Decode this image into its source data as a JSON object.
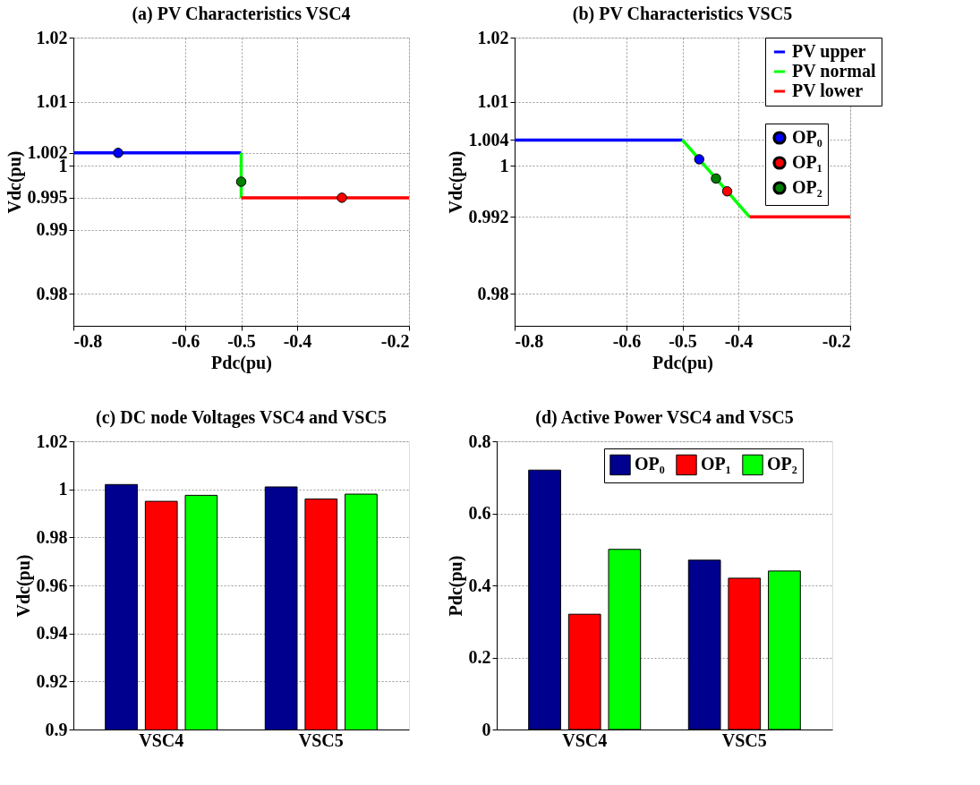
{
  "chart_data": [
    {
      "type": "line",
      "title": "(a) PV Characteristics VSC4",
      "xlabel": "Pdc(pu)",
      "ylabel": "Vdc(pu)",
      "xlim": [
        -0.8,
        -0.2
      ],
      "xticks": [
        -0.8,
        -0.6,
        -0.5,
        -0.4,
        -0.2
      ],
      "ylim": [
        0.975,
        1.02
      ],
      "yticks": [
        0.98,
        0.99,
        0.995,
        1,
        1.002,
        1.01,
        1.02
      ],
      "grid": true,
      "legend": false,
      "series": [
        {
          "type": "line",
          "color": "#0000ff",
          "x": [
            -0.8,
            -0.5
          ],
          "values": [
            1.002,
            1.002
          ]
        },
        {
          "type": "line",
          "color": "#00ff00",
          "x": [
            -0.5,
            -0.5
          ],
          "values": [
            1.002,
            0.995
          ]
        },
        {
          "type": "line",
          "color": "#ff0000",
          "x": [
            -0.5,
            -0.2
          ],
          "values": [
            0.995,
            0.995
          ]
        },
        {
          "type": "scatter",
          "color": "#0000ff",
          "x": [
            -0.72
          ],
          "values": [
            1.002
          ]
        },
        {
          "type": "scatter",
          "color": "#ff0000",
          "x": [
            -0.32
          ],
          "values": [
            0.995
          ]
        },
        {
          "type": "scatter",
          "color": "#008000",
          "x": [
            -0.5
          ],
          "values": [
            0.9975
          ]
        }
      ]
    },
    {
      "type": "line",
      "title": "(b) PV Characteristics VSC5",
      "xlabel": "Pdc(pu)",
      "ylabel": "Vdc(pu)",
      "xlim": [
        -0.8,
        -0.2
      ],
      "xticks": [
        -0.8,
        -0.6,
        -0.5,
        -0.4,
        -0.2
      ],
      "ylim": [
        0.975,
        1.02
      ],
      "yticks": [
        0.98,
        0.992,
        1,
        1.004,
        1.01,
        1.02
      ],
      "grid": true,
      "legend": "top right",
      "series": [
        {
          "type": "line",
          "name": "PV upper",
          "color": "#0000ff",
          "x": [
            -0.8,
            -0.5
          ],
          "values": [
            1.004,
            1.004
          ]
        },
        {
          "type": "line",
          "name": "PV normal",
          "color": "#00ff00",
          "x": [
            -0.5,
            -0.38
          ],
          "values": [
            1.004,
            0.992
          ]
        },
        {
          "type": "line",
          "name": "PV lower",
          "color": "#ff0000",
          "x": [
            -0.38,
            -0.2
          ],
          "values": [
            0.992,
            0.992
          ]
        },
        {
          "type": "scatter",
          "name": "OP₀",
          "color": "#0000ff",
          "x": [
            -0.47
          ],
          "values": [
            1.001
          ]
        },
        {
          "type": "scatter",
          "name": "OP₁",
          "color": "#ff0000",
          "x": [
            -0.42
          ],
          "values": [
            0.996
          ]
        },
        {
          "type": "scatter",
          "name": "OP₂",
          "color": "#008000",
          "x": [
            -0.44
          ],
          "values": [
            0.998
          ]
        }
      ]
    },
    {
      "type": "bar",
      "title": "(c) DC node Voltages VSC4 and VSC5",
      "ylabel": "Vdc(pu)",
      "categories": [
        "VSC4",
        "VSC5"
      ],
      "ylim": [
        0.9,
        1.02
      ],
      "yticks": [
        0.9,
        0.92,
        0.94,
        0.96,
        0.98,
        1,
        1.02
      ],
      "grid": "y",
      "legend": false,
      "series": [
        {
          "color": "#00008f",
          "values": [
            1.002,
            1.001
          ]
        },
        {
          "color": "#ff0000",
          "values": [
            0.995,
            0.996
          ]
        },
        {
          "color": "#00ff00",
          "values": [
            0.9975,
            0.998
          ]
        }
      ]
    },
    {
      "type": "bar",
      "title": "(d) Active Power VSC4 and VSC5",
      "ylabel": "Pdc(pu)",
      "categories": [
        "VSC4",
        "VSC5"
      ],
      "ylim": [
        0,
        0.8
      ],
      "yticks": [
        0,
        0.2,
        0.4,
        0.6,
        0.8
      ],
      "grid": "y",
      "legend": "top right",
      "series": [
        {
          "name": "OP₀",
          "color": "#00008f",
          "values": [
            0.72,
            0.47
          ]
        },
        {
          "name": "OP₁",
          "color": "#ff0000",
          "values": [
            0.32,
            0.42
          ]
        },
        {
          "name": "OP₂",
          "color": "#00ff00",
          "values": [
            0.5,
            0.44
          ]
        }
      ]
    }
  ]
}
